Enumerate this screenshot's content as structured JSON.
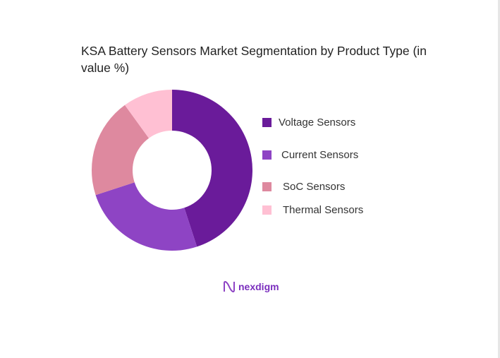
{
  "chart_data": {
    "type": "pie",
    "subtype": "donut",
    "title": "KSA Battery Sensors Market Segmentation by Product Type (in value %)",
    "categories": [
      "Voltage Sensors",
      "Current Sensors",
      "SoC Sensors",
      "Thermal Sensors"
    ],
    "values": [
      45,
      25,
      20,
      10
    ],
    "colors": [
      "#6a1b9a",
      "#8e44c4",
      "#de899f",
      "#ffc0d3"
    ],
    "legend_position": "right"
  },
  "brand": {
    "name": "nexdigm",
    "color": "#7b2fbe"
  }
}
